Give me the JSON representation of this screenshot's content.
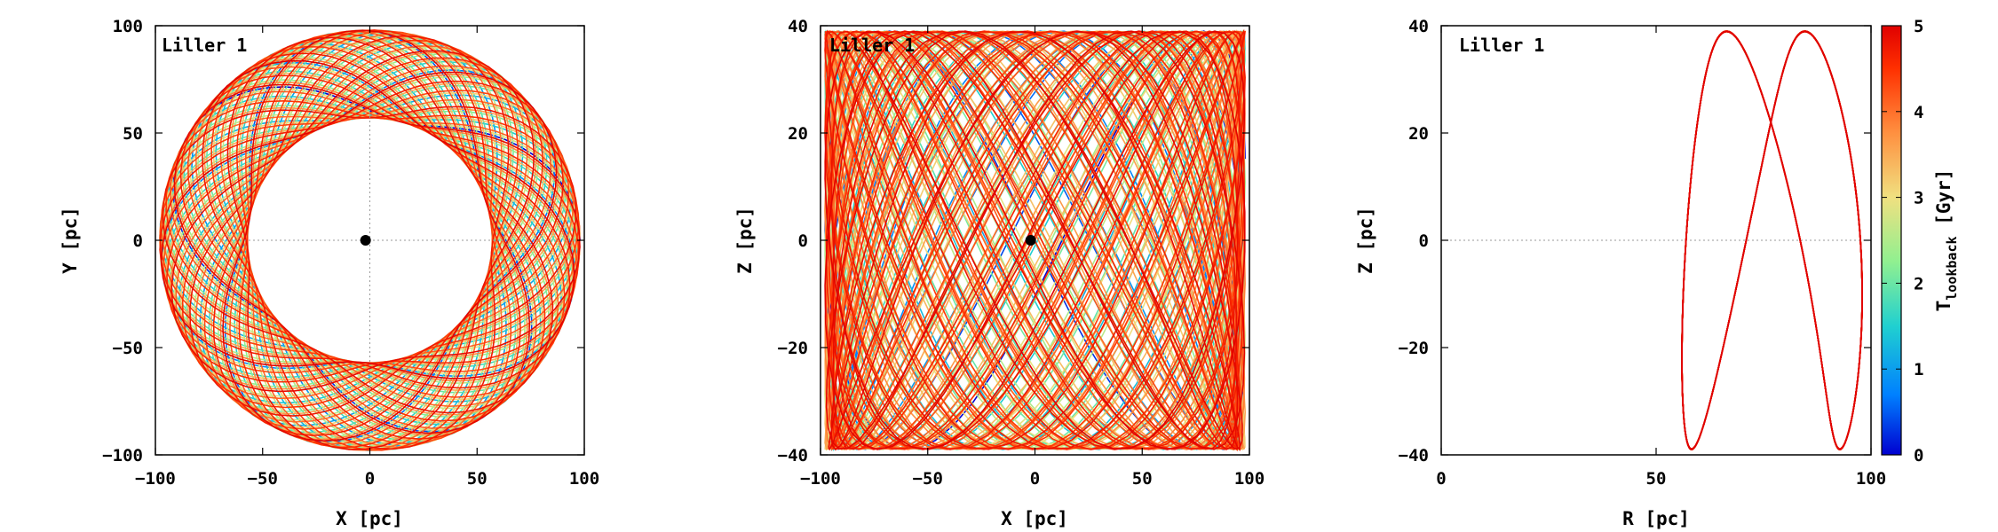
{
  "chart_data": [
    {
      "type": "line",
      "panel": "xy",
      "title": "Liller 1",
      "xlabel": "X [pc]",
      "ylabel": "Y [pc]",
      "xlim": [
        -100,
        100
      ],
      "ylim": [
        -100,
        100
      ],
      "xticks": [
        "−100",
        "−50",
        "0",
        "50",
        "100"
      ],
      "yticks": [
        "100",
        "50",
        "0",
        "−50",
        "−100"
      ],
      "grid": false,
      "reference_lines": "dotted zero lines",
      "center_point": [
        -2,
        0
      ],
      "orbit": {
        "r_min": 57,
        "r_max": 98,
        "description": "rosette orbit, color-coded by lookback time"
      }
    },
    {
      "type": "line",
      "panel": "xz",
      "title": "Liller 1",
      "xlabel": "X [pc]",
      "ylabel": "Z [pc]",
      "xlim": [
        -100,
        100
      ],
      "ylim": [
        -40,
        40
      ],
      "xticks": [
        "−100",
        "−50",
        "0",
        "50",
        "100"
      ],
      "yticks": [
        "40",
        "20",
        "0",
        "−20",
        "−40"
      ],
      "grid": false,
      "center_point": [
        -2,
        0
      ],
      "orbit": {
        "x_range": [
          -98,
          95
        ],
        "z_range": [
          -39,
          39
        ],
        "description": "box-like orbit projection, color-coded by lookback time"
      }
    },
    {
      "type": "line",
      "panel": "rz",
      "title": "Liller 1",
      "xlabel": "R [pc]",
      "ylabel": "Z [pc]",
      "xlim": [
        0,
        100
      ],
      "ylim": [
        -40,
        40
      ],
      "xticks": [
        "0",
        "50",
        "100"
      ],
      "yticks": [
        "40",
        "20",
        "0",
        "−20",
        "−40"
      ],
      "grid": false,
      "orbit": {
        "r_range": [
          56,
          98
        ],
        "z_range": [
          -39,
          39
        ],
        "description": "meridional orbit, color-coded by lookback time"
      }
    }
  ],
  "colorbar": {
    "label_main": "T",
    "label_sub": "lookback",
    "label_unit": " [Gyr]",
    "ticks": [
      "5",
      "4",
      "3",
      "2",
      "1",
      "0"
    ],
    "range": [
      0,
      5
    ],
    "colormap": [
      "#0000d0",
      "#0080ff",
      "#20d0d0",
      "#90f090",
      "#f0e080",
      "#ff9040",
      "#ff3000",
      "#e00000"
    ]
  }
}
